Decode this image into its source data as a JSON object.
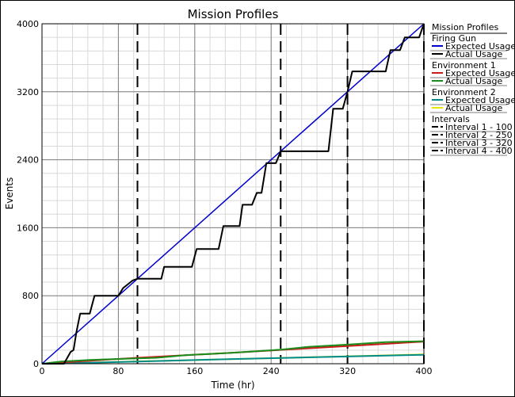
{
  "chart_data": {
    "type": "line",
    "title": "Mission Profiles",
    "xlabel": "Time (hr)",
    "ylabel": "Events",
    "xlim": [
      0,
      400
    ],
    "ylim": [
      0,
      4000
    ],
    "x_ticks": [
      0,
      80,
      160,
      240,
      320,
      400
    ],
    "y_ticks": [
      0,
      800,
      1600,
      2400,
      3200,
      4000
    ],
    "grid": true,
    "legend_position": "right",
    "legend": {
      "title": "Mission Profiles",
      "groups": [
        {
          "name": "Firing Gun",
          "entries": [
            {
              "label": "Expected Usage",
              "color": "#0000cc",
              "style": "solid"
            },
            {
              "label": "Actual Usage",
              "color": "#000000",
              "style": "solid"
            }
          ]
        },
        {
          "name": "Environment 1",
          "entries": [
            {
              "label": "Expected Usage",
              "color": "#cc1a1a",
              "style": "solid"
            },
            {
              "label": "Actual Usage",
              "color": "#1a8c1a",
              "style": "solid"
            }
          ]
        },
        {
          "name": "Environment 2",
          "entries": [
            {
              "label": "Expected Usage",
              "color": "#008b8b",
              "style": "solid"
            },
            {
              "label": "Actual Usage",
              "color": "#e6e600",
              "style": "solid"
            }
          ]
        },
        {
          "name": "Intervals",
          "entries": [
            {
              "label": "Interval 1 - 100",
              "color": "#000000",
              "style": "dashed"
            },
            {
              "label": "Interval 2 - 250",
              "color": "#000000",
              "style": "dashed"
            },
            {
              "label": "Interval 3 - 320",
              "color": "#000000",
              "style": "dashed"
            },
            {
              "label": "Interval 4 - 400",
              "color": "#000000",
              "style": "dashed"
            }
          ]
        }
      ]
    },
    "series": [
      {
        "name": "Firing Gun - Expected Usage",
        "color": "#0000cc",
        "points": [
          [
            0,
            0
          ],
          [
            400,
            4000
          ]
        ]
      },
      {
        "name": "Firing Gun - Actual Usage",
        "color": "#000000",
        "points": [
          [
            0,
            0
          ],
          [
            23,
            0
          ],
          [
            30,
            140
          ],
          [
            33,
            160
          ],
          [
            36,
            370
          ],
          [
            40,
            590
          ],
          [
            50,
            590
          ],
          [
            55,
            800
          ],
          [
            80,
            800
          ],
          [
            85,
            890
          ],
          [
            95,
            980
          ],
          [
            100,
            1000
          ],
          [
            125,
            1000
          ],
          [
            128,
            1140
          ],
          [
            157,
            1140
          ],
          [
            162,
            1350
          ],
          [
            185,
            1350
          ],
          [
            190,
            1620
          ],
          [
            207,
            1620
          ],
          [
            210,
            1870
          ],
          [
            220,
            1870
          ],
          [
            225,
            2010
          ],
          [
            230,
            2010
          ],
          [
            235,
            2360
          ],
          [
            245,
            2360
          ],
          [
            250,
            2500
          ],
          [
            300,
            2500
          ],
          [
            305,
            3000
          ],
          [
            315,
            3000
          ],
          [
            320,
            3200
          ],
          [
            325,
            3440
          ],
          [
            360,
            3440
          ],
          [
            365,
            3690
          ],
          [
            375,
            3690
          ],
          [
            380,
            3840
          ],
          [
            395,
            3840
          ],
          [
            400,
            4000
          ]
        ]
      },
      {
        "name": "Environment 1 - Expected Usage",
        "color": "#cc1a1a",
        "points": [
          [
            0,
            0
          ],
          [
            100,
            70
          ],
          [
            200,
            130
          ],
          [
            300,
            195
          ],
          [
            400,
            260
          ]
        ]
      },
      {
        "name": "Environment 1 - Actual Usage",
        "color": "#1a8c1a",
        "points": [
          [
            0,
            0
          ],
          [
            20,
            25
          ],
          [
            50,
            45
          ],
          [
            90,
            60
          ],
          [
            120,
            70
          ],
          [
            150,
            100
          ],
          [
            200,
            130
          ],
          [
            250,
            165
          ],
          [
            280,
            200
          ],
          [
            320,
            225
          ],
          [
            360,
            255
          ],
          [
            400,
            265
          ]
        ]
      },
      {
        "name": "Environment 2 - Expected Usage",
        "color": "#008b8b",
        "points": [
          [
            0,
            0
          ],
          [
            100,
            25
          ],
          [
            200,
            55
          ],
          [
            300,
            80
          ],
          [
            400,
            105
          ]
        ]
      },
      {
        "name": "Environment 2 - Actual Usage",
        "color": "#e6e600",
        "points": [
          [
            0,
            0
          ],
          [
            50,
            12
          ],
          [
            100,
            28
          ],
          [
            150,
            40
          ],
          [
            200,
            55
          ],
          [
            250,
            68
          ],
          [
            300,
            82
          ],
          [
            350,
            95
          ],
          [
            400,
            110
          ]
        ]
      }
    ],
    "intervals": [
      100,
      250,
      320,
      400
    ]
  }
}
